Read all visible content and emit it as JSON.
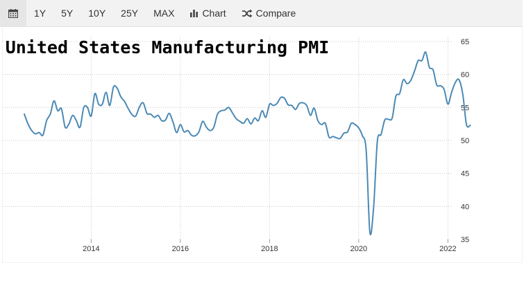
{
  "toolbar": {
    "calendar_icon": "calendar-icon",
    "ranges": [
      "1Y",
      "5Y",
      "10Y",
      "25Y",
      "MAX"
    ],
    "chart_label": "Chart",
    "chart_icon": "bar-chart-icon",
    "compare_label": "Compare",
    "compare_icon": "shuffle-icon"
  },
  "chart_data": {
    "type": "line",
    "title": "United States Manufacturing PMI",
    "xlabel": "",
    "ylabel": "",
    "xlim": [
      "2012-06",
      "2022-06"
    ],
    "ylim": [
      35,
      65
    ],
    "y_ticks": [
      35,
      40,
      45,
      50,
      55,
      60,
      65
    ],
    "x_ticks": [
      "2014",
      "2016",
      "2018",
      "2020",
      "2022"
    ],
    "y_axis_side": "right",
    "grid": true,
    "line_color": "#4b89b4",
    "series": [
      {
        "x": [
          "2012-07",
          "2012-08",
          "2012-09",
          "2012-10",
          "2012-11",
          "2012-12",
          "2013-01",
          "2013-02",
          "2013-03",
          "2013-04",
          "2013-05",
          "2013-06",
          "2013-07",
          "2013-08",
          "2013-09",
          "2013-10",
          "2013-11",
          "2013-12",
          "2014-01",
          "2014-02",
          "2014-03",
          "2014-04",
          "2014-05",
          "2014-06",
          "2014-07",
          "2014-08",
          "2014-09",
          "2014-10",
          "2014-11",
          "2014-12",
          "2015-01",
          "2015-02",
          "2015-03",
          "2015-04",
          "2015-05",
          "2015-06",
          "2015-07",
          "2015-08",
          "2015-09",
          "2015-10",
          "2015-11",
          "2015-12",
          "2016-01",
          "2016-02",
          "2016-03",
          "2016-04",
          "2016-05",
          "2016-06",
          "2016-07",
          "2016-08",
          "2016-09",
          "2016-10",
          "2016-11",
          "2016-12",
          "2017-01",
          "2017-02",
          "2017-03",
          "2017-04",
          "2017-05",
          "2017-06",
          "2017-07",
          "2017-08",
          "2017-09",
          "2017-10",
          "2017-11",
          "2017-12",
          "2018-01",
          "2018-02",
          "2018-03",
          "2018-04",
          "2018-05",
          "2018-06",
          "2018-07",
          "2018-08",
          "2018-09",
          "2018-10",
          "2018-11",
          "2018-12",
          "2019-01",
          "2019-02",
          "2019-03",
          "2019-04",
          "2019-05",
          "2019-06",
          "2019-07",
          "2019-08",
          "2019-09",
          "2019-10",
          "2019-11",
          "2019-12",
          "2020-01",
          "2020-02",
          "2020-03",
          "2020-04",
          "2020-05",
          "2020-06",
          "2020-07",
          "2020-08",
          "2020-09",
          "2020-10",
          "2020-11",
          "2020-12",
          "2021-01",
          "2021-02",
          "2021-03",
          "2021-04",
          "2021-05",
          "2021-06",
          "2021-07",
          "2021-08",
          "2021-09",
          "2021-10",
          "2021-11",
          "2021-12",
          "2022-01",
          "2022-02",
          "2022-03",
          "2022-04",
          "2022-05",
          "2022-06",
          "2022-07"
        ],
        "values": [
          54.0,
          52.5,
          51.5,
          51.0,
          51.2,
          50.8,
          53.0,
          54.0,
          56.0,
          54.5,
          54.8,
          52.0,
          52.5,
          53.8,
          53.0,
          52.0,
          55.0,
          55.0,
          53.7,
          57.1,
          55.5,
          55.5,
          57.3,
          55.3,
          58.1,
          57.9,
          56.6,
          55.9,
          54.8,
          53.9,
          53.7,
          55.1,
          55.7,
          54.1,
          54.0,
          53.5,
          53.8,
          53.0,
          53.1,
          54.1,
          52.8,
          51.2,
          52.4,
          51.3,
          51.5,
          50.8,
          50.7,
          51.3,
          52.9,
          52.0,
          51.5,
          52.0,
          54.0,
          54.5,
          54.6,
          55.0,
          54.2,
          53.3,
          52.9,
          52.6,
          53.3,
          52.5,
          53.4,
          53.0,
          54.5,
          53.5,
          55.5,
          55.3,
          55.6,
          56.5,
          56.4,
          55.4,
          55.3,
          54.7,
          55.6,
          55.7,
          55.3,
          53.8,
          54.9,
          53.0,
          52.4,
          52.6,
          50.5,
          50.6,
          50.4,
          50.3,
          51.1,
          51.3,
          52.6,
          52.4,
          51.9,
          50.7,
          48.5,
          36.1,
          39.8,
          49.8,
          50.9,
          53.1,
          53.2,
          53.4,
          56.7,
          57.1,
          59.2,
          58.6,
          59.1,
          60.5,
          62.1,
          62.1,
          63.4,
          61.1,
          60.7,
          58.4,
          58.3,
          57.7,
          55.5,
          57.3,
          58.8,
          59.2,
          57.0,
          52.4,
          52.3
        ]
      }
    ]
  }
}
